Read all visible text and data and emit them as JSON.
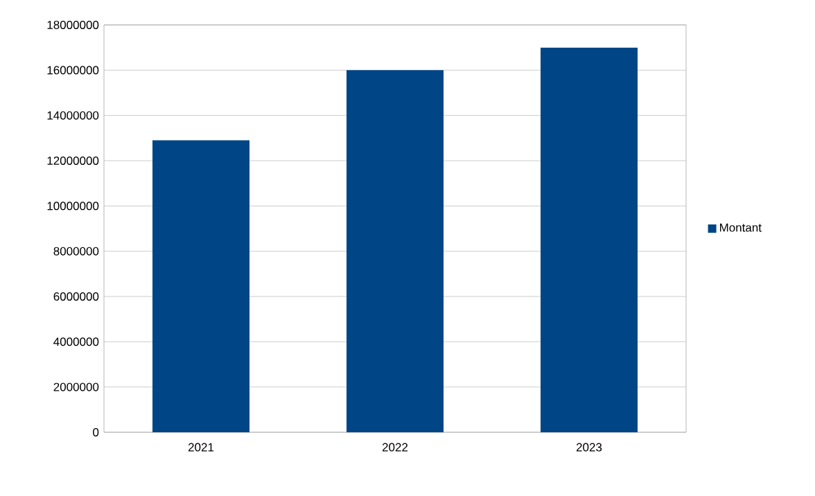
{
  "chart_data": {
    "type": "bar",
    "categories": [
      "2021",
      "2022",
      "2023"
    ],
    "series": [
      {
        "name": "Montant",
        "color": "#004586",
        "values": [
          12900000,
          16000000,
          17000000
        ]
      }
    ],
    "ylim": [
      0,
      18000000
    ],
    "yticks": [
      0,
      2000000,
      4000000,
      6000000,
      8000000,
      10000000,
      12000000,
      14000000,
      16000000,
      18000000
    ],
    "grid": "y",
    "legend": "right"
  }
}
